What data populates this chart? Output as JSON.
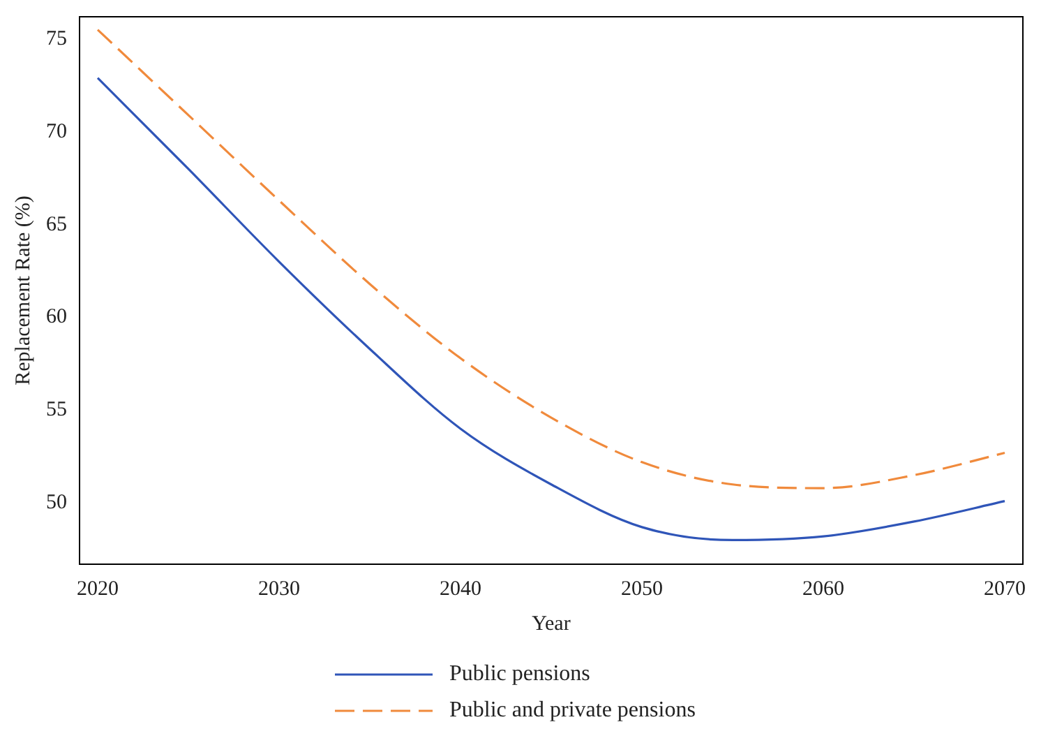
{
  "chart_data": {
    "type": "line",
    "xlabel": "Year",
    "ylabel": "Replacement Rate (%)",
    "x": [
      2020,
      2025,
      2030,
      2035,
      2040,
      2045,
      2050,
      2055,
      2060,
      2065,
      2070
    ],
    "series": [
      {
        "name": "Public pensions",
        "color": "#2f55b8",
        "line_style": "solid",
        "values": [
          72.9,
          68.0,
          63.0,
          58.3,
          54.0,
          51.0,
          48.7,
          48.0,
          48.2,
          49.0,
          50.1
        ]
      },
      {
        "name": "Public and private pensions",
        "color": "#f08a3c",
        "line_style": "dashed",
        "values": [
          75.5,
          70.9,
          66.3,
          61.8,
          57.8,
          54.6,
          52.2,
          51.0,
          50.8,
          51.5,
          52.7
        ]
      }
    ],
    "xlim": [
      2019,
      2071
    ],
    "xticks": [
      2020,
      2030,
      2040,
      2050,
      2060,
      2070
    ],
    "ylim": [
      46.7,
      76.2
    ],
    "yticks": [
      50,
      55,
      60,
      65,
      70,
      75
    ],
    "grid": false,
    "legend": "bottom",
    "marker": "none"
  }
}
